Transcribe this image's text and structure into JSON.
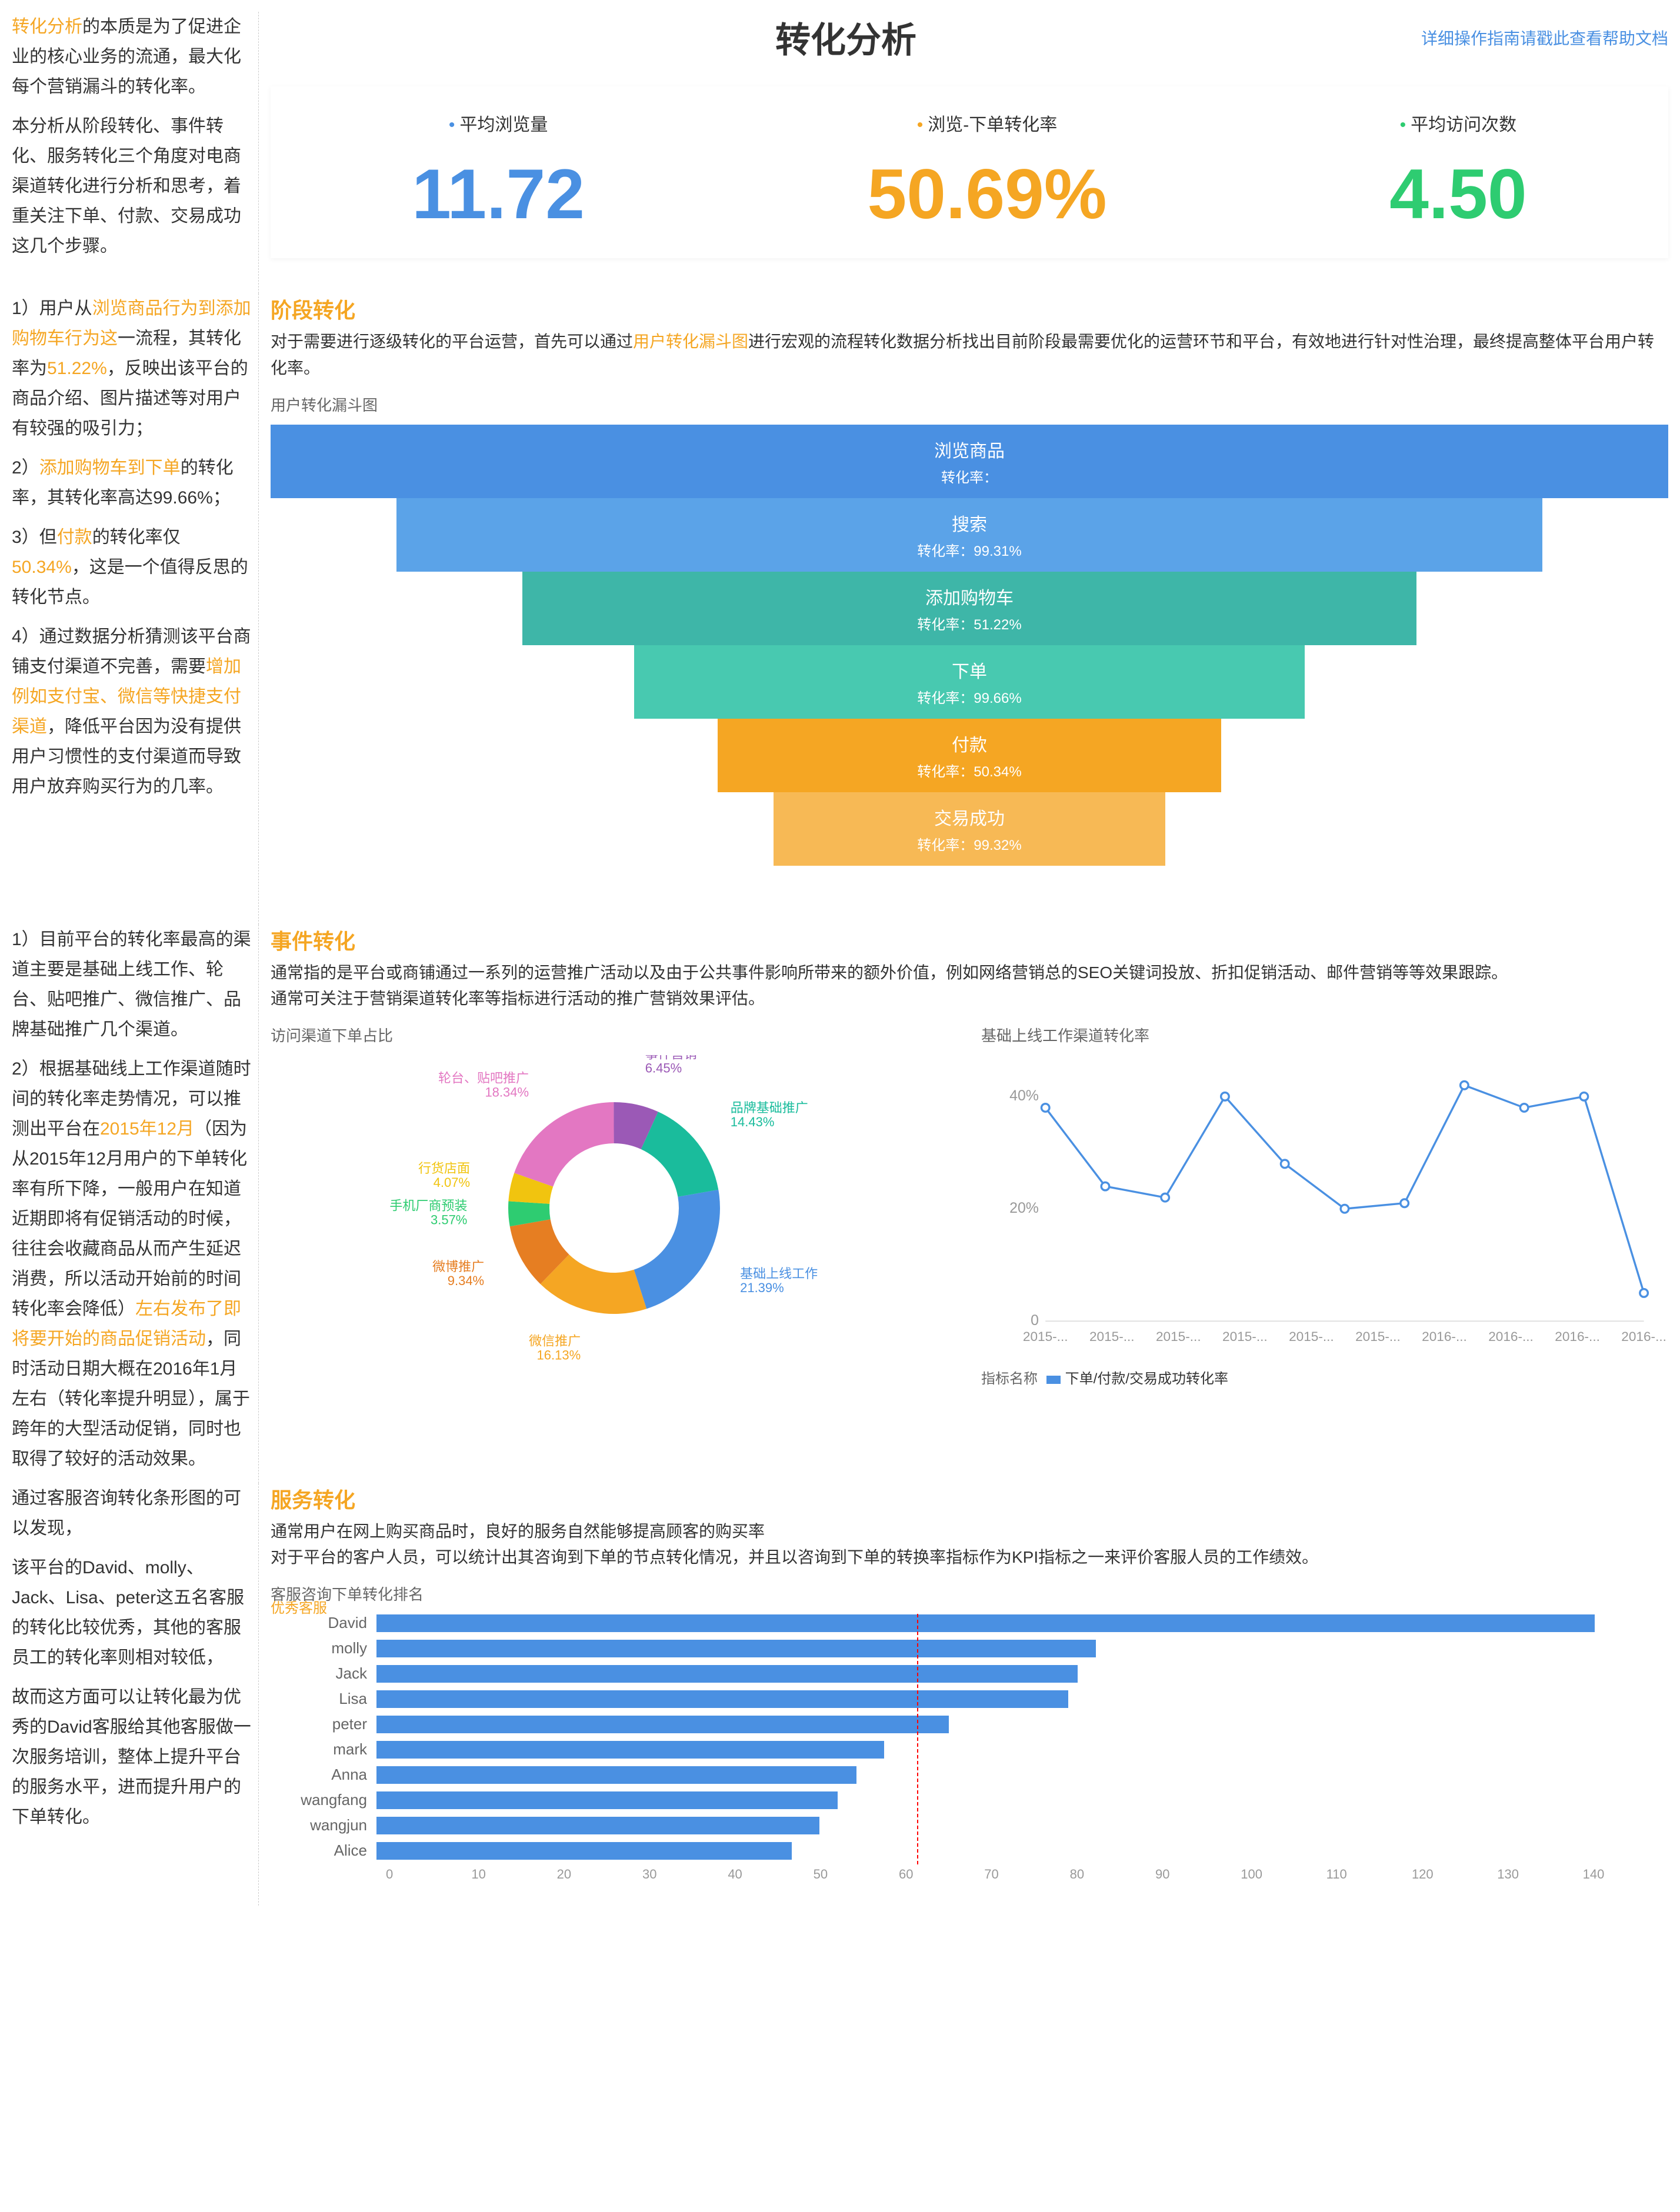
{
  "header": {
    "title": "转化分析",
    "help": "详细操作指南请戳此查看帮助文档"
  },
  "sidebar_intro": {
    "p1a": "转化分析",
    "p1b": "的本质是为了促进企业的核心业务的流通，最大化每个营销漏斗的转化率。",
    "p2": "本分析从阶段转化、事件转化、服务转化三个角度对电商渠道转化进行分析和思考，着重关注下单、付款、交易成功这几个步骤。"
  },
  "kpis": [
    {
      "label": "平均浏览量",
      "value": "11.72"
    },
    {
      "label": "浏览-下单转化率",
      "value": "50.69%"
    },
    {
      "label": "平均访问次数",
      "value": "4.50"
    }
  ],
  "stage_section": {
    "title": "阶段转化",
    "desc_a": "对于需要进行逐级转化的平台运营，首先可以通过",
    "desc_hl": "用户转化漏斗图",
    "desc_b": "进行宏观的流程转化数据分析找出目前阶段最需要优化的运营环节和平台，有效地进行针对性治理，最终提高整体平台用户转化率。",
    "chart_title": "用户转化漏斗图"
  },
  "funnel": {
    "rate_prefix": "转化率：",
    "rate_only": "转化率：",
    "colors": [
      "#4a90e2",
      "#5ba3e8",
      "#3eb6a8",
      "#48c9b0",
      "#f5a623",
      "#f7b955"
    ],
    "widths": [
      100,
      82,
      64,
      48,
      36,
      28
    ],
    "stages": [
      {
        "name": "浏览商品",
        "rate": ""
      },
      {
        "name": "搜索",
        "rate": "99.31%"
      },
      {
        "name": "添加购物车",
        "rate": "51.22%"
      },
      {
        "name": "下单",
        "rate": "99.66%"
      },
      {
        "name": "付款",
        "rate": "50.34%"
      },
      {
        "name": "交易成功",
        "rate": "99.32%"
      }
    ]
  },
  "sidebar_stage": {
    "i1a": "1）用户从",
    "i1h1": "浏览商品行为到添加购物车行为这",
    "i1b": "一流程，其转化率为",
    "i1h2": "51.22%",
    "i1c": "，反映出该平台的商品介绍、图片描述等对用户有较强的吸引力；",
    "i2a": "2）",
    "i2h": "添加购物车到下单",
    "i2b": "的转化率，其转化率高达99.66%；",
    "i3a": "3）但",
    "i3h": "付款",
    "i3b": "的转化率仅",
    "i3h2": "50.34%",
    "i3c": "，这是一个值得反思的转化节点。",
    "i4a": "4）通过数据分析猜测该平台商铺支付渠道不完善，需要",
    "i4h": "增加例如支付宝、微信等快捷支付渠道",
    "i4b": "，降低平台因为没有提供用户习惯性的支付渠道而导致用户放弃购买行为的几率。"
  },
  "event_section": {
    "title": "事件转化",
    "desc1": "通常指的是平台或商铺通过一系列的运营推广活动以及由于公共事件影响所带来的额外价值，例如网络营销总的SEO关键词投放、折扣促销活动、邮件营销等等效果跟踪。",
    "desc2": "通常可关注于营销渠道转化率等指标进行活动的推广营销效果评估。",
    "chart1_title": "访问渠道下单占比",
    "chart2_title": "基础上线工作渠道转化率"
  },
  "donut": {
    "slices": [
      {
        "label": "基础上线工作",
        "pct": "21.39%",
        "color": "#4a90e2"
      },
      {
        "label": "微信推广",
        "pct": "16.13%",
        "color": "#f5a623"
      },
      {
        "label": "微博推广",
        "pct": "9.34%",
        "color": "#e67e22"
      },
      {
        "label": "手机厂商预装",
        "pct": "3.57%",
        "color": "#2ecc71"
      },
      {
        "label": "行货店面",
        "pct": "4.07%",
        "color": "#f1c40f"
      },
      {
        "label": "轮台、贴吧推广",
        "pct": "18.34%",
        "color": "#e377c2"
      },
      {
        "label": "事件营销",
        "pct": "6.45%",
        "color": "#9b59b6"
      },
      {
        "label": "品牌基础推广",
        "pct": "14.43%",
        "color": "#1abc9c"
      }
    ]
  },
  "line_chart": {
    "yticks": [
      "0",
      "20%",
      "40%"
    ],
    "xticks": [
      "2015-...",
      "2015-...",
      "2015-...",
      "2015-...",
      "2015-...",
      "2015-...",
      "2016-...",
      "2016-...",
      "2016-...",
      "2016-..."
    ],
    "points": [
      38,
      24,
      22,
      40,
      28,
      20,
      21,
      42,
      38,
      40,
      5
    ],
    "color": "#4a90e2",
    "legend_label": "指标名称",
    "legend_item": "下单/付款/交易成功转化率"
  },
  "sidebar_event": {
    "p1": "1）目前平台的转化率最高的渠道主要是基础上线工作、轮台、贴吧推广、微信推广、品牌基础推广几个渠道。",
    "p2a": "2）根据基础线上工作渠道随时间的转化率走势情况，可以推测出平台在",
    "p2h1": "2015年12月",
    "p2b": "（因为从2015年12月用户的下单转化率有所下降，一般用户在知道近期即将有促销活动的时候，往往会收藏商品从而产生延迟消费，所以活动开始前的时间转化率会降低）",
    "p2h2": "左右发布了即将要开始的商品促销活动",
    "p2c": "，同时活动日期大概在2016年1月左右（转化率提升明显），属于跨年的大型活动促销，同时也取得了较好的活动效果。"
  },
  "service_section": {
    "title": "服务转化",
    "desc1": "通常用户在网上购买商品时，良好的服务自然能够提高顾客的购买率",
    "desc2": "对于平台的客户人员，可以统计出其咨询到下单的节点转化情况，并且以咨询到下单的转换率指标作为KPI指标之一来评价客服人员的工作绩效。",
    "chart_title": "客服咨询下单转化排名"
  },
  "bar_chart": {
    "max": 140,
    "threshold": 58,
    "threshold_label": "优秀客服",
    "xticks": [
      "0",
      "10",
      "20",
      "30",
      "40",
      "50",
      "60",
      "70",
      "80",
      "90",
      "100",
      "110",
      "120",
      "130",
      "140"
    ],
    "color": "#4a90e2",
    "data": [
      {
        "name": "David",
        "value": 132
      },
      {
        "name": "molly",
        "value": 78
      },
      {
        "name": "Jack",
        "value": 76
      },
      {
        "name": "Lisa",
        "value": 75
      },
      {
        "name": "peter",
        "value": 62
      },
      {
        "name": "mark",
        "value": 55
      },
      {
        "name": "Anna",
        "value": 52
      },
      {
        "name": "wangfang",
        "value": 50
      },
      {
        "name": "wangjun",
        "value": 48
      },
      {
        "name": "Alice",
        "value": 45
      }
    ]
  },
  "sidebar_service": {
    "p1": "通过客服咨询转化条形图的可以发现，",
    "p2": "该平台的David、molly、Jack、Lisa、peter这五名客服的转化比较优秀，其他的客服员工的转化率则相对较低，",
    "p3": "故而这方面可以让转化最为优秀的David客服给其他客服做一次服务培训，整体上提升平台的服务水平，进而提升用户的下单转化。"
  }
}
